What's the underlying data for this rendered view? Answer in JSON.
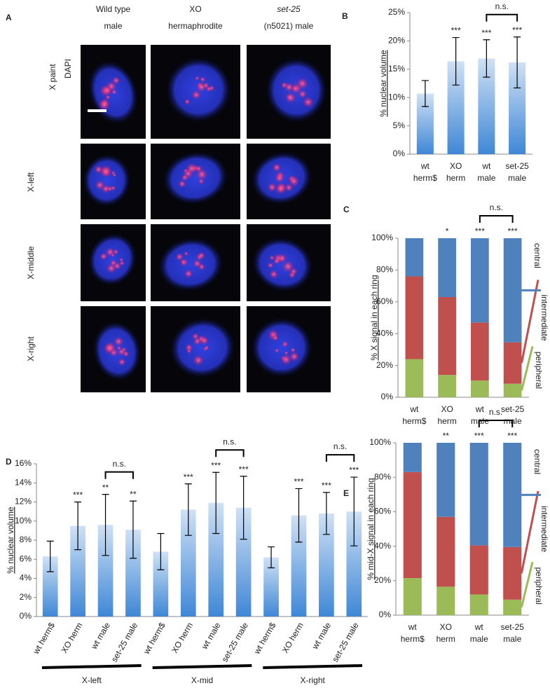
{
  "panel_a": {
    "label": "A",
    "columns": [
      [
        "Wild type",
        "male"
      ],
      [
        "XO",
        "hermaphrodite"
      ],
      [
        "set-25",
        "(n5021) male"
      ]
    ],
    "stains": [
      "X paint",
      "DAPI"
    ],
    "rows": [
      "X-left",
      "X-middle",
      "X-right"
    ]
  },
  "chart_data": [
    {
      "type": "bar",
      "panel_label": "B",
      "y_label": "% nuclear volume",
      "categories": [
        [
          "wt",
          "herm$"
        ],
        [
          "XO",
          "herm"
        ],
        [
          "wt",
          "male"
        ],
        [
          "set-25",
          "male"
        ]
      ],
      "values": [
        10.7,
        16.4,
        16.9,
        16.2
      ],
      "errors": [
        2.3,
        4.2,
        3.3,
        4.5
      ],
      "significance": [
        null,
        "***",
        "***",
        "***"
      ],
      "annotations": [
        "n.s."
      ],
      "color": "#3f87d6",
      "ylim": [
        0,
        25
      ],
      "yticks": [
        {
          "value": 0,
          "label": "0%"
        },
        {
          "value": 5,
          "label": "5%"
        },
        {
          "value": 10,
          "label": "10%"
        },
        {
          "value": 15,
          "label": "15%"
        },
        {
          "value": 20,
          "label": "20%"
        },
        {
          "value": 25,
          "label": "25%"
        }
      ]
    },
    {
      "type": "stacked_bar",
      "panel_label": "C",
      "y_label": "% X signal in each ring",
      "categories": [
        [
          "wt",
          "herm$"
        ],
        [
          "XO",
          "herm"
        ],
        [
          "wt",
          "male"
        ],
        [
          "set-25",
          "male"
        ]
      ],
      "series": [
        {
          "name": "peripheral",
          "color": "#9bbb59",
          "values": [
            24,
            14,
            10.5,
            8.5
          ]
        },
        {
          "name": "intermediate",
          "color": "#c0504d",
          "values": [
            52,
            49,
            36.5,
            26
          ]
        },
        {
          "name": "central",
          "color": "#4f81bd",
          "values": [
            24,
            37,
            53,
            65.5
          ]
        }
      ],
      "significance": [
        null,
        "*",
        "***",
        "***"
      ],
      "annotations": [
        "n.s."
      ],
      "ylim": [
        0,
        100
      ],
      "yticks": [
        {
          "value": 0,
          "label": "0%"
        },
        {
          "value": 20,
          "label": "20%"
        },
        {
          "value": 40,
          "label": "40%"
        },
        {
          "value": 60,
          "label": "60%"
        },
        {
          "value": 80,
          "label": "80%"
        },
        {
          "value": 100,
          "label": "100%"
        }
      ]
    },
    {
      "type": "bar",
      "panel_label": "D",
      "y_label": "% nuclear volume",
      "categories": [
        "wt herm$",
        "XO herm",
        "wt male",
        "set-25 male",
        "wt herm$",
        "XO herm",
        "wt male",
        "set-25 male",
        "wt herm$",
        "XO herm",
        "wt male",
        "set-25 male"
      ],
      "groups": [
        "X-left",
        "X-mid",
        "X-right"
      ],
      "values": [
        6.3,
        9.5,
        9.6,
        9.1,
        6.8,
        11.2,
        11.9,
        11.4,
        6.2,
        10.6,
        10.8,
        11.0
      ],
      "errors": [
        1.6,
        2.5,
        3.2,
        3.0,
        1.9,
        2.7,
        3.2,
        3.3,
        1.1,
        2.8,
        2.2,
        3.6
      ],
      "significance": [
        null,
        "***",
        "**",
        "**",
        null,
        "***",
        "***",
        "***",
        null,
        "***",
        "***",
        "***"
      ],
      "annotations": [
        "n.s.",
        "n.s.",
        "n.s."
      ],
      "color": "#3f87d6",
      "ylim": [
        0,
        16
      ],
      "yticks": [
        {
          "value": 0,
          "label": "0%"
        },
        {
          "value": 2,
          "label": "2%"
        },
        {
          "value": 4,
          "label": "4%"
        },
        {
          "value": 6,
          "label": "6%"
        },
        {
          "value": 8,
          "label": "8%"
        },
        {
          "value": 10,
          "label": "10%"
        },
        {
          "value": 12,
          "label": "12%"
        },
        {
          "value": 14,
          "label": "14%"
        },
        {
          "value": 16,
          "label": "16%"
        }
      ]
    },
    {
      "type": "stacked_bar",
      "panel_label": "E",
      "y_label": "% mid-X signal in each ring",
      "categories": [
        [
          "wt",
          "herm$"
        ],
        [
          "XO",
          "herm"
        ],
        [
          "wt",
          "male"
        ],
        [
          "set-25",
          "male"
        ]
      ],
      "series": [
        {
          "name": "peripheral",
          "color": "#9bbb59",
          "values": [
            21.5,
            16.5,
            12,
            9
          ]
        },
        {
          "name": "intermediate",
          "color": "#c0504d",
          "values": [
            61.5,
            40.5,
            28.5,
            30.5
          ]
        },
        {
          "name": "central",
          "color": "#4f81bd",
          "values": [
            17,
            43,
            59.5,
            60.5
          ]
        }
      ],
      "significance": [
        null,
        "**",
        "***",
        "***"
      ],
      "annotations": [
        "n.s."
      ],
      "ylim": [
        0,
        100
      ],
      "yticks": [
        {
          "value": 0,
          "label": "0%"
        },
        {
          "value": 20,
          "label": "20%"
        },
        {
          "value": 40,
          "label": "40%"
        },
        {
          "value": 60,
          "label": "60%"
        },
        {
          "value": 80,
          "label": "80%"
        },
        {
          "value": 100,
          "label": "100%"
        }
      ]
    }
  ]
}
